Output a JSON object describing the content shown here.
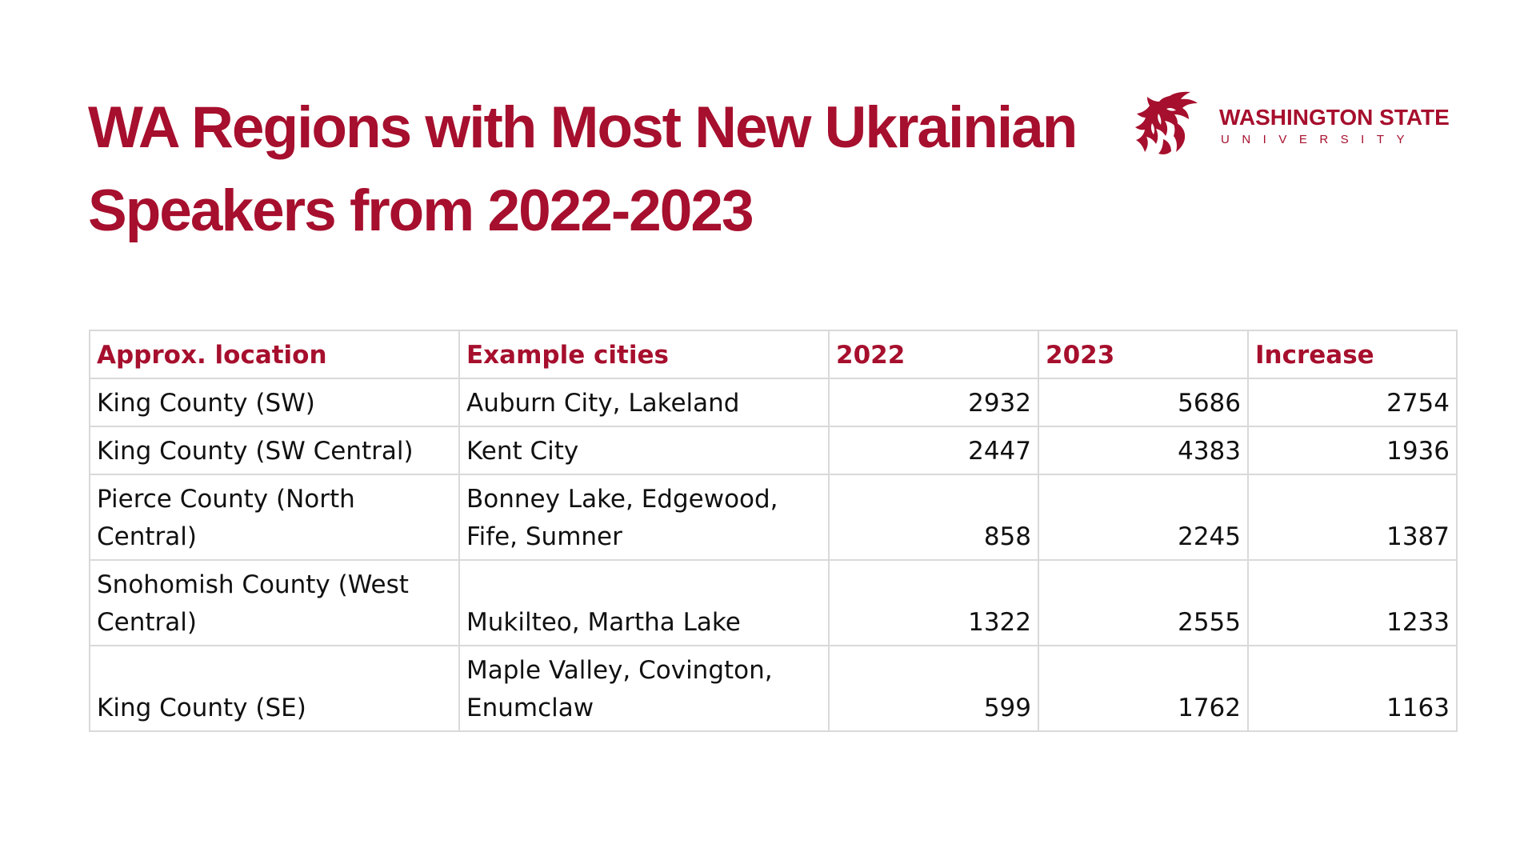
{
  "title": {
    "line1": "WA Regions with Most New Ukrainian",
    "line2": "Speakers from 2022-2023"
  },
  "logo": {
    "name": "WASHINGTON STATE",
    "sub": "UNIVERSITY",
    "icon": "cougar-head-icon",
    "color": "#A60F2D"
  },
  "table": {
    "headers": [
      "Approx. location",
      "Example cities",
      "2022",
      "2023",
      "Increase"
    ],
    "rows": [
      {
        "location": "King County (SW)",
        "cities": "Auburn City, Lakeland",
        "y2022": "2932",
        "y2023": "5686",
        "increase": "2754"
      },
      {
        "location": "King County (SW Central)",
        "cities": "Kent City",
        "y2022": "2447",
        "y2023": "4383",
        "increase": "1936"
      },
      {
        "location": "Pierce County (North Central)",
        "cities": "Bonney Lake, Edgewood, Fife, Sumner",
        "y2022": "858",
        "y2023": "2245",
        "increase": "1387"
      },
      {
        "location": "Snohomish County (West Central)",
        "cities": "Mukilteo, Martha Lake",
        "y2022": "1322",
        "y2023": "2555",
        "increase": "1233"
      },
      {
        "location": "King County (SE)",
        "cities": "Maple Valley, Covington, Enumclaw",
        "y2022": "599",
        "y2023": "1762",
        "increase": "1163"
      }
    ]
  }
}
